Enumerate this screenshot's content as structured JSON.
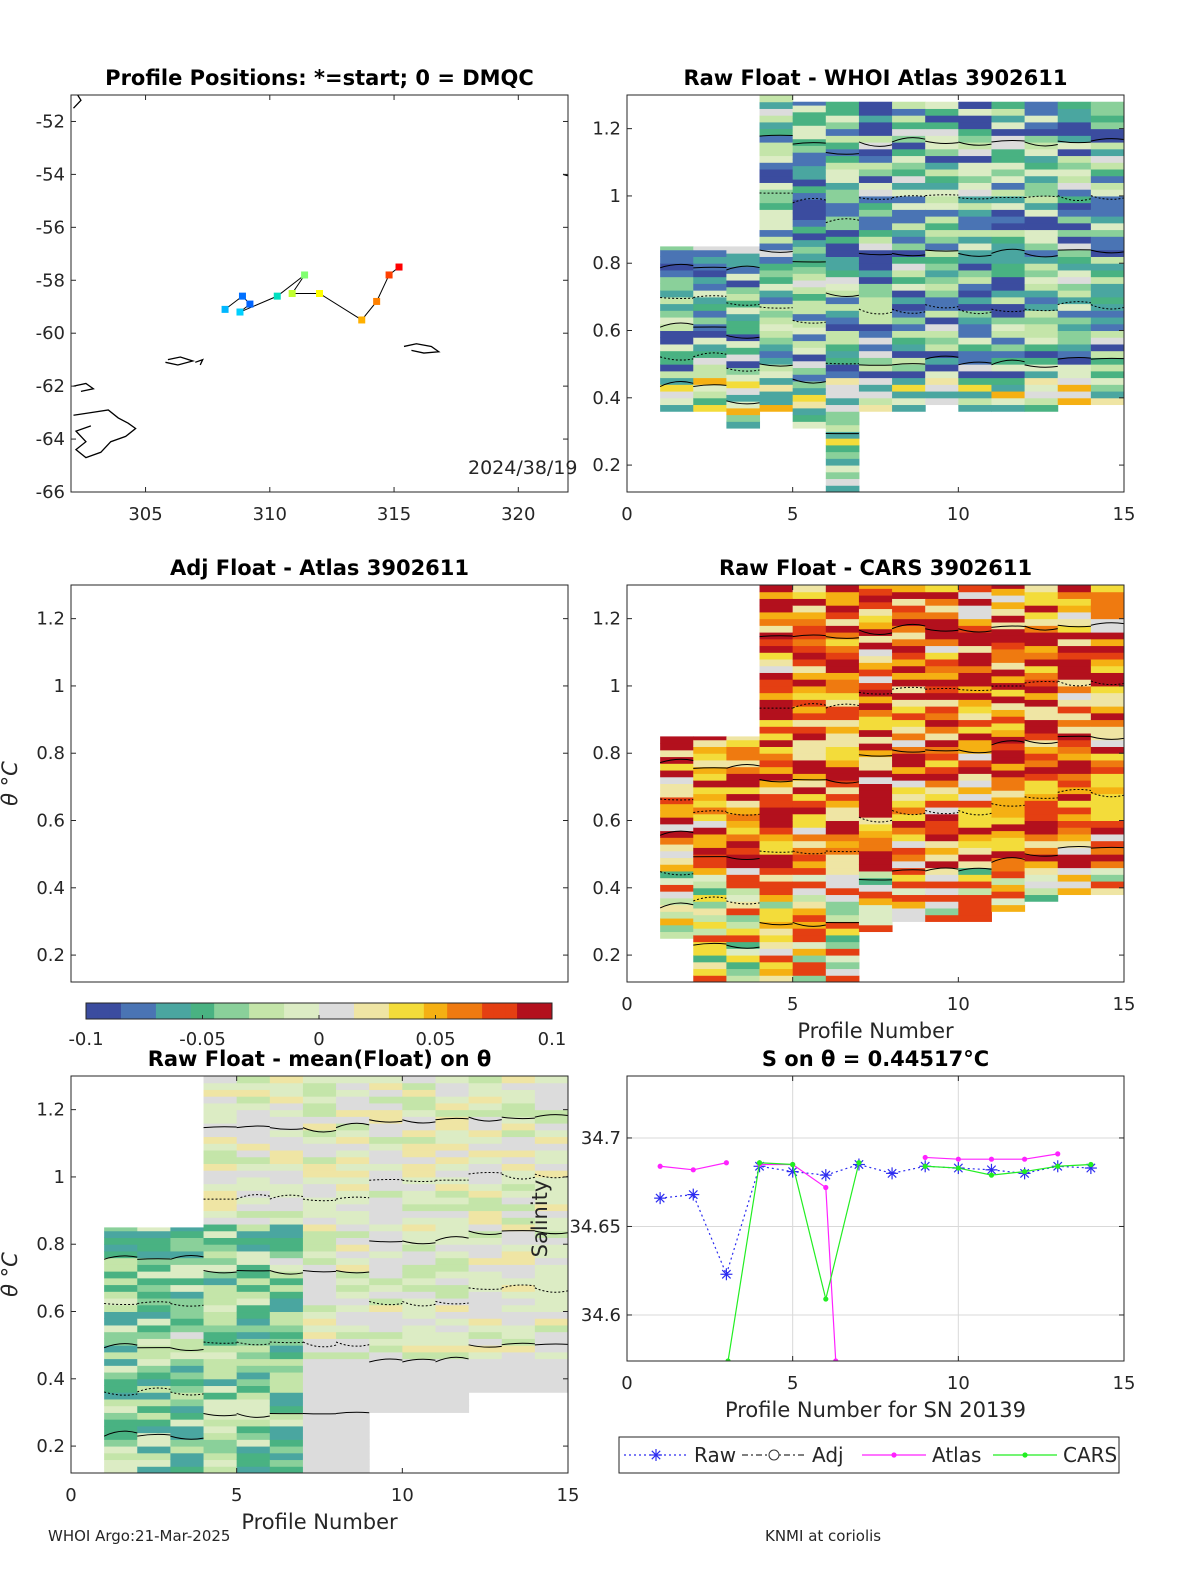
{
  "figure": {
    "footer_left": "WHOI Argo:21-Mar-2025",
    "footer_right": "KNMI at coriolis"
  },
  "colors": {
    "raw": "#2c2cf0",
    "adj": "#333333",
    "atlas": "#ff22ff",
    "cars": "#22ee22",
    "track": "#000000",
    "coast": "#000000",
    "grid": "#d9d9d9",
    "colormap": [
      "#3b4c9f",
      "#4a74b4",
      "#4aa6a0",
      "#49b282",
      "#8ad09a",
      "#c4e5a9",
      "#dcecc4",
      "#dcdcdc",
      "#efe5a4",
      "#f3dc3a",
      "#f5b013",
      "#ef7a10",
      "#e43f12",
      "#b3101d"
    ]
  },
  "chart_data": [
    {
      "id": "positions",
      "type": "scatter",
      "title": "Profile Positions: *=start; 0 = DMQC",
      "annotation": "2024/38/19",
      "xlim": [
        302,
        322
      ],
      "ylim": [
        -66,
        -51
      ],
      "xticks": [
        "305",
        "310",
        "315",
        "320"
      ],
      "xtick_values": [
        305,
        310,
        315,
        320
      ],
      "yticks": [
        "-52",
        "-54",
        "-56",
        "-58",
        "-60",
        "-62",
        "-64",
        "-66"
      ],
      "ytick_values": [
        -52,
        -54,
        -56,
        -58,
        -60,
        -62,
        -64,
        -66
      ],
      "track": [
        {
          "lon": 308.2,
          "lat": -59.1,
          "color": "#00b7ff"
        },
        {
          "lon": 308.9,
          "lat": -58.6,
          "color": "#0070ff"
        },
        {
          "lon": 309.2,
          "lat": -58.9,
          "color": "#0064ff"
        },
        {
          "lon": 308.8,
          "lat": -59.2,
          "color": "#00d0ff"
        },
        {
          "lon": 310.3,
          "lat": -58.6,
          "color": "#00e0c0"
        },
        {
          "lon": 311.4,
          "lat": -57.8,
          "color": "#80ff70"
        },
        {
          "lon": 310.9,
          "lat": -58.5,
          "color": "#c0ff30"
        },
        {
          "lon": 312.0,
          "lat": -58.5,
          "color": "#ffff00"
        },
        {
          "lon": 313.7,
          "lat": -59.5,
          "color": "#ffb000"
        },
        {
          "lon": 314.3,
          "lat": -58.8,
          "color": "#ff8000"
        },
        {
          "lon": 314.8,
          "lat": -57.8,
          "color": "#ff4000"
        },
        {
          "lon": 315.2,
          "lat": -57.5,
          "color": "#ff0000"
        }
      ],
      "coast": [
        [
          [
            302.1,
            -51.5
          ],
          [
            302.4,
            -51.2
          ],
          [
            302.2,
            -50.9
          ]
        ],
        [
          [
            321.8,
            -54.0
          ],
          [
            322.0,
            -54.05
          ]
        ],
        [
          [
            305.9,
            -61.0
          ],
          [
            306.4,
            -60.9
          ],
          [
            306.9,
            -61.05
          ],
          [
            306.3,
            -61.2
          ],
          [
            305.8,
            -61.1
          ]
        ],
        [
          [
            307.0,
            -61.1
          ],
          [
            307.3,
            -61.0
          ],
          [
            307.2,
            -61.2
          ]
        ],
        [
          [
            302.1,
            -62.0
          ],
          [
            302.6,
            -61.9
          ],
          [
            302.9,
            -62.1
          ],
          [
            302.4,
            -62.2
          ]
        ],
        [
          [
            302.1,
            -63.1
          ],
          [
            302.8,
            -63.0
          ],
          [
            303.5,
            -62.9
          ],
          [
            303.9,
            -63.2
          ],
          [
            304.3,
            -63.4
          ],
          [
            304.6,
            -63.6
          ],
          [
            304.2,
            -63.9
          ],
          [
            303.6,
            -64.1
          ],
          [
            303.2,
            -64.5
          ],
          [
            302.6,
            -64.7
          ],
          [
            302.2,
            -64.4
          ],
          [
            302.6,
            -64.1
          ],
          [
            302.2,
            -63.7
          ],
          [
            302.8,
            -63.5
          ]
        ],
        [
          [
            315.4,
            -60.5
          ],
          [
            315.9,
            -60.4
          ],
          [
            316.5,
            -60.5
          ],
          [
            316.8,
            -60.7
          ],
          [
            316.2,
            -60.75
          ],
          [
            315.7,
            -60.65
          ]
        ]
      ]
    },
    {
      "id": "whoi",
      "type": "heatmap",
      "title": "Raw Float - WHOI Atlas  3902611",
      "xlabel": "",
      "ylabel": "",
      "xlim": [
        0,
        15
      ],
      "ylim": [
        0.12,
        1.3
      ],
      "xticks": [
        "0",
        "5",
        "10",
        "15"
      ],
      "xtick_values": [
        0,
        5,
        10,
        15
      ],
      "yticks": [
        "0.2",
        "0.4",
        "0.6",
        "0.8",
        "1",
        "1.2"
      ],
      "ytick_values": [
        0.2,
        0.4,
        0.6,
        0.8,
        1,
        1.2
      ],
      "bias": -0.2,
      "columns": [
        {
          "profile": 1,
          "ymin": 0.36,
          "ymax": 0.85
        },
        {
          "profile": 2,
          "ymin": 0.36,
          "ymax": 0.85
        },
        {
          "profile": 3,
          "ymin": 0.31,
          "ymax": 0.85
        },
        {
          "profile": 4,
          "ymin": 0.36,
          "ymax": 1.3
        },
        {
          "profile": 5,
          "ymin": 0.31,
          "ymax": 1.28
        },
        {
          "profile": 6,
          "ymin": 0.12,
          "ymax": 1.28
        },
        {
          "profile": 7,
          "ymin": 0.36,
          "ymax": 1.28
        },
        {
          "profile": 8,
          "ymin": 0.36,
          "ymax": 1.28
        },
        {
          "profile": 9,
          "ymin": 0.38,
          "ymax": 1.28
        },
        {
          "profile": 10,
          "ymin": 0.36,
          "ymax": 1.28
        },
        {
          "profile": 11,
          "ymin": 0.36,
          "ymax": 1.28
        },
        {
          "profile": 12,
          "ymin": 0.36,
          "ymax": 1.28
        },
        {
          "profile": 13,
          "ymin": 0.38,
          "ymax": 1.28
        },
        {
          "profile": 14,
          "ymin": 0.38,
          "ymax": 1.28
        }
      ]
    },
    {
      "id": "adj",
      "type": "heatmap",
      "title": "Adj Float - Atlas  3902611",
      "xlabel": "",
      "ylabel": "θ °C",
      "xlim": [
        0,
        15
      ],
      "ylim": [
        0.12,
        1.3
      ],
      "xticks": [],
      "xtick_values": [],
      "yticks": [
        "0.2",
        "0.4",
        "0.6",
        "0.8",
        "1",
        "1.2"
      ],
      "ytick_values": [
        0.2,
        0.4,
        0.6,
        0.8,
        1,
        1.2
      ],
      "columns": []
    },
    {
      "id": "cars",
      "type": "heatmap",
      "title": "Raw Float - CARS  3902611",
      "xlabel": "Profile Number",
      "ylabel": "",
      "xlim": [
        0,
        15
      ],
      "ylim": [
        0.12,
        1.3
      ],
      "xticks": [
        "0",
        "5",
        "10",
        "15"
      ],
      "xtick_values": [
        0,
        5,
        10,
        15
      ],
      "yticks": [
        "0.2",
        "0.4",
        "0.6",
        "0.8",
        "1",
        "1.2"
      ],
      "ytick_values": [
        0.2,
        0.4,
        0.6,
        0.8,
        1,
        1.2
      ],
      "bias": 0.25,
      "columns": [
        {
          "profile": 1,
          "ymin": 0.25,
          "ymax": 0.85
        },
        {
          "profile": 2,
          "ymin": 0.12,
          "ymax": 0.85
        },
        {
          "profile": 3,
          "ymin": 0.12,
          "ymax": 0.85
        },
        {
          "profile": 4,
          "ymin": 0.12,
          "ymax": 1.3
        },
        {
          "profile": 5,
          "ymin": 0.12,
          "ymax": 1.3
        },
        {
          "profile": 6,
          "ymin": 0.12,
          "ymax": 1.3
        },
        {
          "profile": 7,
          "ymin": 0.27,
          "ymax": 1.3
        },
        {
          "profile": 8,
          "ymin": 0.3,
          "ymax": 1.3
        },
        {
          "profile": 9,
          "ymin": 0.3,
          "ymax": 1.3
        },
        {
          "profile": 10,
          "ymin": 0.3,
          "ymax": 1.3
        },
        {
          "profile": 11,
          "ymin": 0.33,
          "ymax": 1.3
        },
        {
          "profile": 12,
          "ymin": 0.36,
          "ymax": 1.3
        },
        {
          "profile": 13,
          "ymin": 0.38,
          "ymax": 1.3
        },
        {
          "profile": 14,
          "ymin": 0.38,
          "ymax": 1.3
        }
      ]
    },
    {
      "id": "mean",
      "type": "heatmap",
      "title": "Raw Float - mean(Float) on θ",
      "xlabel": "Profile Number",
      "ylabel": "θ °C",
      "xlim": [
        0,
        15
      ],
      "ylim": [
        0.12,
        1.3
      ],
      "xticks": [
        "0",
        "5",
        "10",
        "15"
      ],
      "xtick_values": [
        0,
        5,
        10,
        15
      ],
      "yticks": [
        "0.2",
        "0.4",
        "0.6",
        "0.8",
        "1",
        "1.2"
      ],
      "ytick_values": [
        0.2,
        0.4,
        0.6,
        0.8,
        1,
        1.2
      ],
      "bias": -0.05,
      "columns": [
        {
          "profile": 1,
          "ymin": 0.12,
          "ymax": 0.85
        },
        {
          "profile": 2,
          "ymin": 0.12,
          "ymax": 0.85
        },
        {
          "profile": 3,
          "ymin": 0.12,
          "ymax": 0.85
        },
        {
          "profile": 4,
          "ymin": 0.12,
          "ymax": 1.3
        },
        {
          "profile": 5,
          "ymin": 0.12,
          "ymax": 1.3
        },
        {
          "profile": 6,
          "ymin": 0.12,
          "ymax": 1.3
        },
        {
          "profile": 7,
          "ymin": 0.12,
          "ymax": 1.3
        },
        {
          "profile": 8,
          "ymin": 0.12,
          "ymax": 1.3
        },
        {
          "profile": 9,
          "ymin": 0.3,
          "ymax": 1.3
        },
        {
          "profile": 10,
          "ymin": 0.3,
          "ymax": 1.3
        },
        {
          "profile": 11,
          "ymin": 0.3,
          "ymax": 1.3
        },
        {
          "profile": 12,
          "ymin": 0.36,
          "ymax": 1.3
        },
        {
          "profile": 13,
          "ymin": 0.36,
          "ymax": 1.3
        },
        {
          "profile": 14,
          "ymin": 0.36,
          "ymax": 1.3
        }
      ]
    },
    {
      "id": "salinity",
      "type": "line",
      "title": "S on θ = 0.44517°C",
      "xlabel": "Profile Number for SN 20139",
      "ylabel": "Salinity",
      "xlim": [
        0,
        15
      ],
      "ylim": [
        34.574,
        34.735
      ],
      "xticks": [
        "0",
        "5",
        "10",
        "15"
      ],
      "xtick_values": [
        0,
        5,
        10,
        15
      ],
      "yticks": [
        "34.6",
        "34.65",
        "34.7"
      ],
      "ytick_values": [
        34.6,
        34.65,
        34.7
      ],
      "grid": true,
      "legend": "bottom",
      "series": [
        {
          "name": "Raw",
          "color": "#2c2cf0",
          "marker": "star",
          "dash": "2,3",
          "x": [
            1,
            2,
            3,
            4,
            5,
            6,
            7,
            8,
            9,
            10,
            11,
            12,
            13,
            14
          ],
          "y": [
            34.666,
            34.668,
            34.623,
            34.684,
            34.681,
            34.679,
            34.685,
            34.68,
            34.684,
            34.683,
            34.682,
            34.68,
            34.684,
            34.683
          ]
        },
        {
          "name": "Adj",
          "color": "#333333",
          "marker": "circle",
          "dash": "6,3,2,3",
          "x": [],
          "y": []
        },
        {
          "name": "Atlas",
          "color": "#ff22ff",
          "marker": "dot",
          "dash": "",
          "x": [
            1,
            2,
            3,
            null,
            4,
            5,
            6,
            6.3,
            null,
            9,
            10,
            11,
            12,
            13
          ],
          "y": [
            34.684,
            34.682,
            34.686,
            null,
            34.685,
            34.685,
            34.672,
            34.574,
            null,
            34.689,
            34.688,
            34.688,
            34.688,
            34.691
          ]
        },
        {
          "name": "CARS",
          "color": "#22ee22",
          "marker": "dot",
          "dash": "",
          "x": [
            3.05,
            4,
            5,
            6,
            7,
            null,
            9,
            10,
            11,
            12,
            13,
            14
          ],
          "y": [
            34.574,
            34.686,
            34.685,
            34.609,
            34.686,
            null,
            34.684,
            34.683,
            34.679,
            34.681,
            34.684,
            34.685
          ]
        }
      ]
    }
  ],
  "colorbar": {
    "ticks": [
      "-0.1",
      "-0.05",
      "0",
      "0.05",
      "0.1"
    ],
    "tick_values": [
      -0.1,
      -0.05,
      0,
      0.05,
      0.1
    ],
    "range": [
      -0.1,
      0.1
    ]
  }
}
